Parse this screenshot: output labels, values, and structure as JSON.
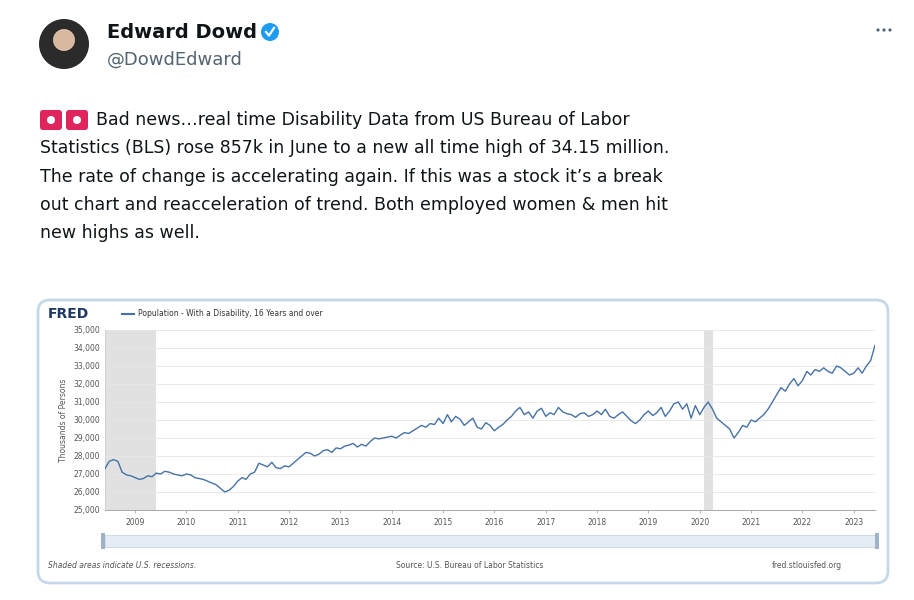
{
  "tweet": {
    "name": "Edward Dowd",
    "handle": "@DowdEdward",
    "lines": [
      "Bad news…real time Disability Data from US Bureau of Labor",
      "Statistics (BLS) rose 857k in June to a new all time high of 34.15 million.",
      "The rate of change is accelerating again. If this was a stock it’s a break",
      "out chart and reacceleration of trend. Both employed women & men hit",
      "new highs as well."
    ]
  },
  "chart_frame": {
    "logo": "FRED",
    "footer_left": "Shaded areas indicate U.S. recessions.",
    "footer_center": "Source: U.S. Bureau of Labor Statistics",
    "footer_right": "fred.stlouisfed.org"
  },
  "chart_data": {
    "type": "line",
    "y_label": "Thousands of Persons",
    "grid": true,
    "x": [
      "2008-06",
      "2008-07",
      "2008-08",
      "2008-09",
      "2008-10",
      "2008-11",
      "2008-12",
      "2009-01",
      "2009-02",
      "2009-03",
      "2009-04",
      "2009-05",
      "2009-06",
      "2009-07",
      "2009-08",
      "2009-09",
      "2009-10",
      "2009-11",
      "2009-12",
      "2010-01",
      "2010-02",
      "2010-03",
      "2010-04",
      "2010-05",
      "2010-06",
      "2010-07",
      "2010-08",
      "2010-09",
      "2010-10",
      "2010-11",
      "2010-12",
      "2011-01",
      "2011-02",
      "2011-03",
      "2011-04",
      "2011-05",
      "2011-06",
      "2011-07",
      "2011-08",
      "2011-09",
      "2011-10",
      "2011-11",
      "2011-12",
      "2012-01",
      "2012-02",
      "2012-03",
      "2012-04",
      "2012-05",
      "2012-06",
      "2012-07",
      "2012-08",
      "2012-09",
      "2012-10",
      "2012-11",
      "2012-12",
      "2013-01",
      "2013-02",
      "2013-03",
      "2013-04",
      "2013-05",
      "2013-06",
      "2013-07",
      "2013-08",
      "2013-09",
      "2013-10",
      "2013-11",
      "2013-12",
      "2014-01",
      "2014-02",
      "2014-03",
      "2014-04",
      "2014-05",
      "2014-06",
      "2014-07",
      "2014-08",
      "2014-09",
      "2014-10",
      "2014-11",
      "2014-12",
      "2015-01",
      "2015-02",
      "2015-03",
      "2015-04",
      "2015-05",
      "2015-06",
      "2015-07",
      "2015-08",
      "2015-09",
      "2015-10",
      "2015-11",
      "2015-12",
      "2016-01",
      "2016-02",
      "2016-03",
      "2016-04",
      "2016-05",
      "2016-06",
      "2016-07",
      "2016-08",
      "2016-09",
      "2016-10",
      "2016-11",
      "2016-12",
      "2017-01",
      "2017-02",
      "2017-03",
      "2017-04",
      "2017-05",
      "2017-06",
      "2017-07",
      "2017-08",
      "2017-09",
      "2017-10",
      "2017-11",
      "2017-12",
      "2018-01",
      "2018-02",
      "2018-03",
      "2018-04",
      "2018-05",
      "2018-06",
      "2018-07",
      "2018-08",
      "2018-09",
      "2018-10",
      "2018-11",
      "2018-12",
      "2019-01",
      "2019-02",
      "2019-03",
      "2019-04",
      "2019-05",
      "2019-06",
      "2019-07",
      "2019-08",
      "2019-09",
      "2019-10",
      "2019-11",
      "2019-12",
      "2020-01",
      "2020-02",
      "2020-03",
      "2020-04",
      "2020-05",
      "2020-06",
      "2020-07",
      "2020-08",
      "2020-09",
      "2020-10",
      "2020-11",
      "2020-12",
      "2021-01",
      "2021-02",
      "2021-03",
      "2021-04",
      "2021-05",
      "2021-06",
      "2021-07",
      "2021-08",
      "2021-09",
      "2021-10",
      "2021-11",
      "2021-12",
      "2022-01",
      "2022-02",
      "2022-03",
      "2022-04",
      "2022-05",
      "2022-06",
      "2022-07",
      "2022-08",
      "2022-09",
      "2022-10",
      "2022-11",
      "2022-12",
      "2023-01",
      "2023-02",
      "2023-03",
      "2023-04",
      "2023-05",
      "2023-06"
    ],
    "series": [
      {
        "name": "Population - With a Disability, 16 Years and over",
        "color": "#4572a7",
        "values": [
          27300,
          27700,
          27800,
          27700,
          27100,
          26950,
          26900,
          26800,
          26700,
          26750,
          26900,
          26850,
          27050,
          27000,
          27150,
          27100,
          27000,
          26950,
          26900,
          27000,
          26950,
          26800,
          26750,
          26700,
          26600,
          26500,
          26400,
          26200,
          26000,
          26100,
          26300,
          26600,
          26800,
          26700,
          27000,
          27100,
          27600,
          27500,
          27400,
          27650,
          27350,
          27300,
          27450,
          27400,
          27600,
          27800,
          28000,
          28200,
          28150,
          28000,
          28100,
          28300,
          28350,
          28200,
          28450,
          28400,
          28550,
          28600,
          28700,
          28500,
          28650,
          28550,
          28800,
          29000,
          28950,
          29000,
          29050,
          29100,
          29000,
          29150,
          29300,
          29250,
          29400,
          29550,
          29700,
          29600,
          29800,
          29750,
          30100,
          29800,
          30300,
          29900,
          30200,
          30050,
          29700,
          29900,
          30100,
          29600,
          29500,
          29850,
          29700,
          29400,
          29600,
          29750,
          30000,
          30200,
          30500,
          30700,
          30300,
          30450,
          30100,
          30500,
          30650,
          30200,
          30400,
          30300,
          30700,
          30450,
          30350,
          30300,
          30150,
          30350,
          30400,
          30200,
          30300,
          30500,
          30300,
          30600,
          30200,
          30100,
          30300,
          30450,
          30200,
          29950,
          29800,
          30000,
          30300,
          30500,
          30250,
          30400,
          30700,
          30200,
          30500,
          30900,
          31000,
          30600,
          30900,
          30100,
          30800,
          30300,
          30700,
          31000,
          30600,
          30100,
          29900,
          29700,
          29500,
          29000,
          29300,
          29700,
          29600,
          30000,
          29900,
          30100,
          30300,
          30600,
          31000,
          31400,
          31800,
          31600,
          32000,
          32300,
          31900,
          32200,
          32700,
          32500,
          32800,
          32700,
          32900,
          32700,
          32600,
          33000,
          32900,
          32700,
          32500,
          32600,
          32900,
          32600,
          33000,
          33300,
          34150
        ]
      }
    ],
    "recessions": [
      {
        "start": "2008-06",
        "end": "2009-06"
      },
      {
        "start": "2020-02",
        "end": "2020-04"
      }
    ],
    "xlim": [
      "2008-06",
      "2023-06"
    ],
    "xticks": [
      {
        "value": "2009-01",
        "label": "2009"
      },
      {
        "value": "2010-01",
        "label": "2010"
      },
      {
        "value": "2011-01",
        "label": "2011"
      },
      {
        "value": "2012-01",
        "label": "2012"
      },
      {
        "value": "2013-01",
        "label": "2013"
      },
      {
        "value": "2014-01",
        "label": "2014"
      },
      {
        "value": "2015-01",
        "label": "2015"
      },
      {
        "value": "2016-01",
        "label": "2016"
      },
      {
        "value": "2017-01",
        "label": "2017"
      },
      {
        "value": "2018-01",
        "label": "2018"
      },
      {
        "value": "2019-01",
        "label": "2019"
      },
      {
        "value": "2020-01",
        "label": "2020"
      },
      {
        "value": "2021-01",
        "label": "2021"
      },
      {
        "value": "2022-01",
        "label": "2022"
      },
      {
        "value": "2023-01",
        "label": "2023"
      }
    ],
    "ylim": [
      25000,
      35000
    ],
    "yticks": [
      {
        "value": 25000,
        "label": "25,000"
      },
      {
        "value": 26000,
        "label": "26,000"
      },
      {
        "value": 27000,
        "label": "27,000"
      },
      {
        "value": 28000,
        "label": "28,000"
      },
      {
        "value": 29000,
        "label": "29,000"
      },
      {
        "value": 30000,
        "label": "30,000"
      },
      {
        "value": 31000,
        "label": "31,000"
      },
      {
        "value": 32000,
        "label": "32,000"
      },
      {
        "value": 33000,
        "label": "33,000"
      },
      {
        "value": 34000,
        "label": "34,000"
      },
      {
        "value": 35000,
        "label": "35,000"
      }
    ]
  }
}
